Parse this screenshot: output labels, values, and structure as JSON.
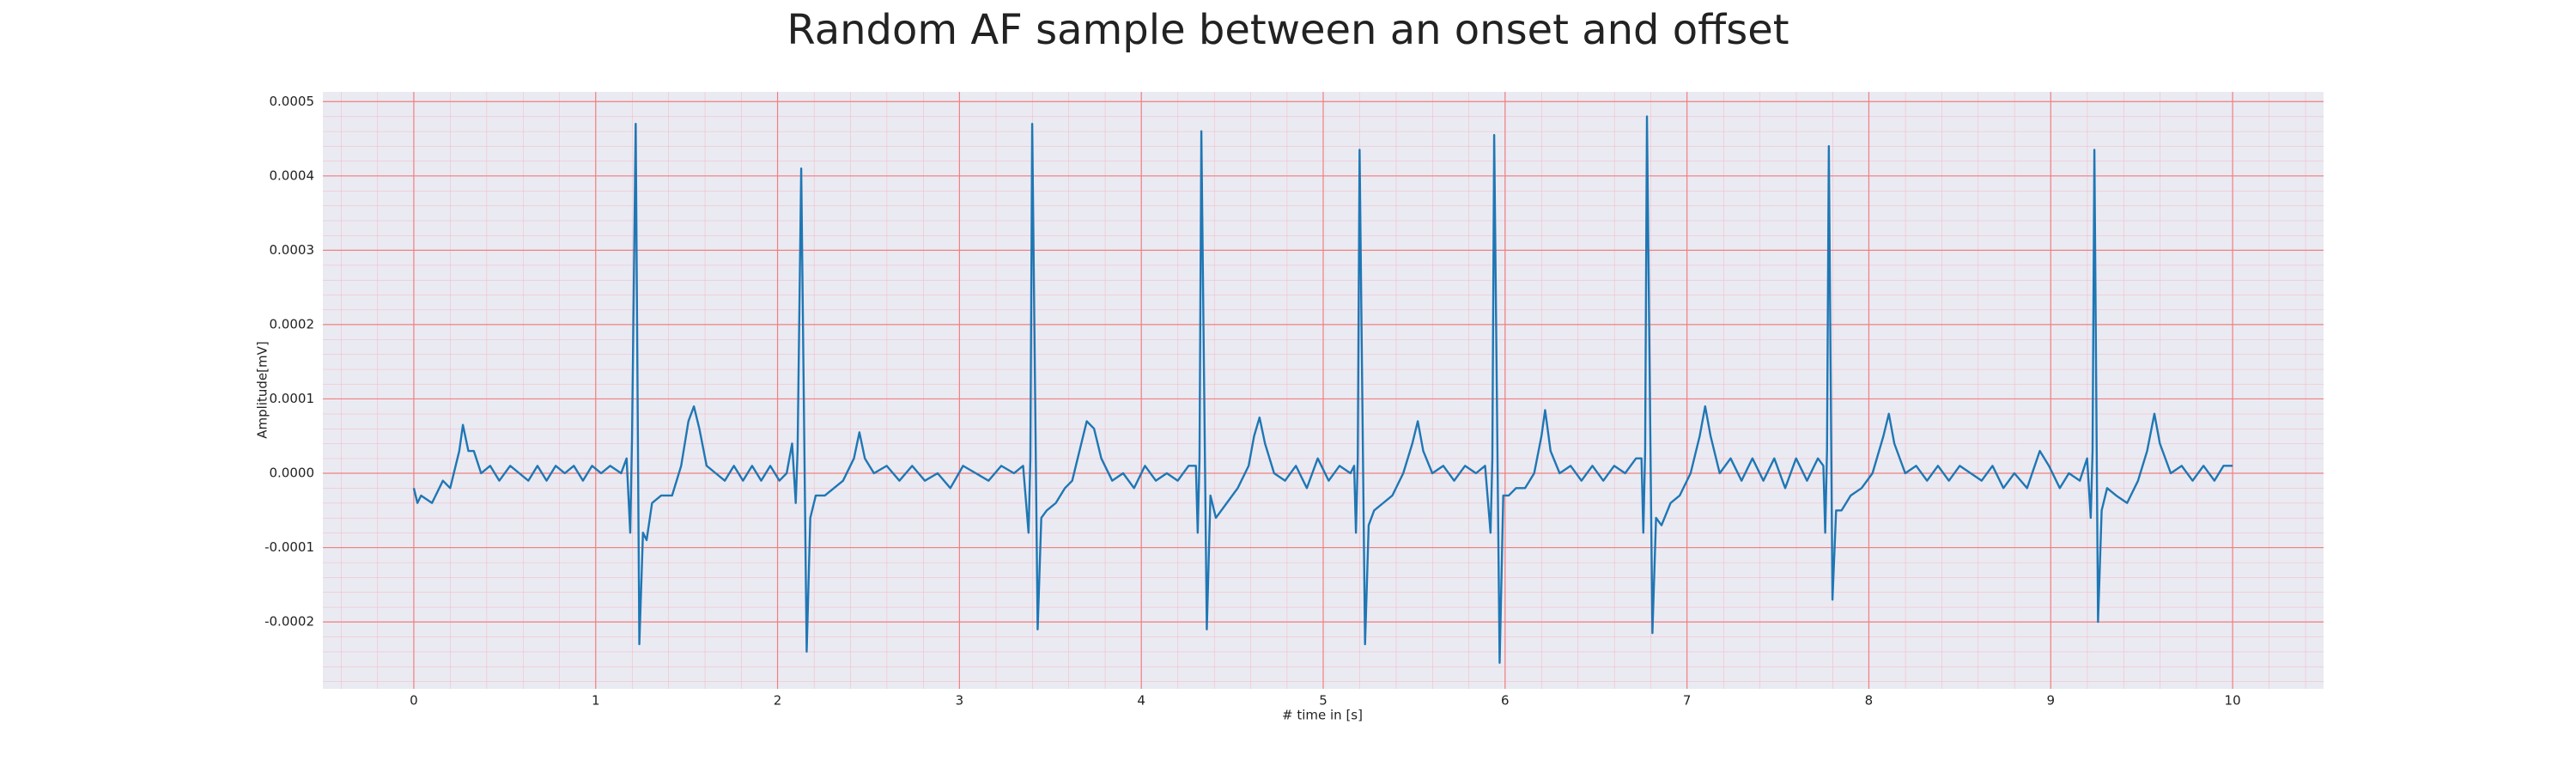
{
  "chart_data": {
    "type": "line",
    "title": "Random AF sample between an onset and offset",
    "x_label": "# time in [s]",
    "y_label": "Amplitude[mV]",
    "xlim": [
      -0.5,
      10.5
    ],
    "ylim": [
      -0.00029,
      0.000513
    ],
    "xticks": [
      0,
      1,
      2,
      3,
      4,
      5,
      6,
      7,
      8,
      9,
      10
    ],
    "yticks": [
      {
        "value": -0.0002,
        "label": "-0.0002"
      },
      {
        "value": -0.0001,
        "label": "-0.0001"
      },
      {
        "value": 0,
        "label": "0.0000"
      },
      {
        "value": 0.0001,
        "label": "0.0001"
      },
      {
        "value": 0.0002,
        "label": "0.0002"
      },
      {
        "value": 0.0003,
        "label": "0.0003"
      },
      {
        "value": 0.0004,
        "label": "0.0004"
      },
      {
        "value": 0.0005,
        "label": "0.0005"
      }
    ],
    "grid": true,
    "grid_color": "#f08080",
    "background": "#eaeaf2",
    "x": [
      0.0,
      0.02,
      0.04,
      0.1,
      0.16,
      0.2,
      0.25,
      0.27,
      0.3,
      0.33,
      0.37,
      0.42,
      0.47,
      0.53,
      0.58,
      0.63,
      0.68,
      0.73,
      0.78,
      0.83,
      0.88,
      0.93,
      0.98,
      1.03,
      1.08,
      1.14,
      1.17,
      1.19,
      1.2,
      1.22,
      1.24,
      1.26,
      1.28,
      1.31,
      1.36,
      1.42,
      1.47,
      1.51,
      1.54,
      1.57,
      1.61,
      1.66,
      1.71,
      1.76,
      1.81,
      1.86,
      1.91,
      1.96,
      2.01,
      2.05,
      2.08,
      2.1,
      2.11,
      2.13,
      2.16,
      2.18,
      2.21,
      2.26,
      2.31,
      2.36,
      2.42,
      2.45,
      2.48,
      2.53,
      2.6,
      2.67,
      2.74,
      2.81,
      2.88,
      2.95,
      3.02,
      3.09,
      3.16,
      3.23,
      3.3,
      3.35,
      3.38,
      3.39,
      3.4,
      3.43,
      3.45,
      3.48,
      3.53,
      3.58,
      3.62,
      3.66,
      3.7,
      3.74,
      3.78,
      3.84,
      3.9,
      3.96,
      4.02,
      4.08,
      4.14,
      4.2,
      4.26,
      4.3,
      4.31,
      4.32,
      4.33,
      4.36,
      4.38,
      4.41,
      4.47,
      4.53,
      4.59,
      4.62,
      4.65,
      4.68,
      4.73,
      4.79,
      4.85,
      4.91,
      4.97,
      5.03,
      5.09,
      5.15,
      5.17,
      5.18,
      5.19,
      5.2,
      5.23,
      5.25,
      5.28,
      5.33,
      5.38,
      5.44,
      5.49,
      5.52,
      5.55,
      5.6,
      5.66,
      5.72,
      5.78,
      5.84,
      5.89,
      5.92,
      5.93,
      5.94,
      5.97,
      5.99,
      6.02,
      6.06,
      6.11,
      6.16,
      6.2,
      6.22,
      6.25,
      6.3,
      6.36,
      6.42,
      6.48,
      6.54,
      6.6,
      6.66,
      6.72,
      6.75,
      6.76,
      6.77,
      6.78,
      6.81,
      6.83,
      6.86,
      6.91,
      6.96,
      7.02,
      7.07,
      7.1,
      7.13,
      7.18,
      7.24,
      7.3,
      7.36,
      7.42,
      7.48,
      7.54,
      7.6,
      7.66,
      7.72,
      7.75,
      7.76,
      7.77,
      7.78,
      7.8,
      7.82,
      7.85,
      7.9,
      7.96,
      8.02,
      8.08,
      8.11,
      8.14,
      8.2,
      8.26,
      8.32,
      8.38,
      8.44,
      8.5,
      8.56,
      8.62,
      8.68,
      8.74,
      8.8,
      8.87,
      8.94,
      8.99,
      9.05,
      9.1,
      9.16,
      9.2,
      9.22,
      9.23,
      9.24,
      9.26,
      9.28,
      9.31,
      9.36,
      9.42,
      9.48,
      9.53,
      9.57,
      9.6,
      9.66,
      9.72,
      9.78,
      9.84,
      9.9,
      9.95,
      10.0
    ],
    "series": [
      {
        "color": "#1f77b4",
        "values": [
          -2e-05,
          -4e-05,
          -3e-05,
          -4e-05,
          -1e-05,
          -2e-05,
          3e-05,
          6.5e-05,
          3e-05,
          3e-05,
          0,
          1e-05,
          -1e-05,
          1e-05,
          0,
          -1e-05,
          1e-05,
          -1e-05,
          1e-05,
          0,
          1e-05,
          -1e-05,
          1e-05,
          0,
          1e-05,
          0,
          2e-05,
          -8e-05,
          5e-05,
          0.00047,
          -0.00023,
          -8e-05,
          -9e-05,
          -4e-05,
          -3e-05,
          -3e-05,
          1e-05,
          7e-05,
          9e-05,
          6e-05,
          1e-05,
          0,
          -1e-05,
          1e-05,
          -1e-05,
          1e-05,
          -1e-05,
          1e-05,
          -1e-05,
          0,
          4e-05,
          -4e-05,
          3e-05,
          0.00041,
          -0.00024,
          -6e-05,
          -3e-05,
          -3e-05,
          -2e-05,
          -1e-05,
          2e-05,
          5.5e-05,
          2e-05,
          0,
          1e-05,
          -1e-05,
          1e-05,
          -1e-05,
          0,
          -2e-05,
          1e-05,
          0,
          -1e-05,
          1e-05,
          0,
          1e-05,
          -8e-05,
          2e-05,
          0.00047,
          -0.00021,
          -6e-05,
          -5e-05,
          -4e-05,
          -2e-05,
          -1e-05,
          3e-05,
          7e-05,
          6e-05,
          2e-05,
          -1e-05,
          0,
          -2e-05,
          1e-05,
          -1e-05,
          0,
          -1e-05,
          1e-05,
          1e-05,
          -8e-05,
          2e-05,
          0.00046,
          -0.00021,
          -3e-05,
          -6e-05,
          -4e-05,
          -2e-05,
          1e-05,
          5e-05,
          7.5e-05,
          4e-05,
          0,
          -1e-05,
          1e-05,
          -2e-05,
          2e-05,
          -1e-05,
          1e-05,
          0,
          1e-05,
          -8e-05,
          2e-05,
          0.000435,
          -0.00023,
          -7e-05,
          -5e-05,
          -4e-05,
          -3e-05,
          0,
          4e-05,
          7e-05,
          3e-05,
          0,
          1e-05,
          -1e-05,
          1e-05,
          0,
          1e-05,
          -8e-05,
          2e-05,
          0.000455,
          -0.000255,
          -3e-05,
          -3e-05,
          -2e-05,
          -2e-05,
          0,
          5e-05,
          8.5e-05,
          3e-05,
          0,
          1e-05,
          -1e-05,
          1e-05,
          -1e-05,
          1e-05,
          0,
          2e-05,
          2e-05,
          -8e-05,
          3e-05,
          0.00048,
          -0.000215,
          -6e-05,
          -7e-05,
          -4e-05,
          -3e-05,
          0,
          5e-05,
          9e-05,
          5e-05,
          0,
          2e-05,
          -1e-05,
          2e-05,
          -1e-05,
          2e-05,
          -2e-05,
          2e-05,
          -1e-05,
          2e-05,
          1e-05,
          -8e-05,
          3e-05,
          0.00044,
          -0.00017,
          -5e-05,
          -5e-05,
          -3e-05,
          -2e-05,
          0,
          5e-05,
          8e-05,
          4e-05,
          0,
          1e-05,
          -1e-05,
          1e-05,
          -1e-05,
          1e-05,
          0,
          -1e-05,
          1e-05,
          -2e-05,
          0,
          -2e-05,
          3e-05,
          1e-05,
          -2e-05,
          0,
          -1e-05,
          2e-05,
          -6e-05,
          3e-05,
          0.000435,
          -0.0002,
          -5e-05,
          -2e-05,
          -3e-05,
          -4e-05,
          -1e-05,
          3e-05,
          8e-05,
          4e-05,
          0,
          1e-05,
          -1e-05,
          1e-05,
          -1e-05,
          1e-05,
          1e-05
        ]
      }
    ]
  }
}
